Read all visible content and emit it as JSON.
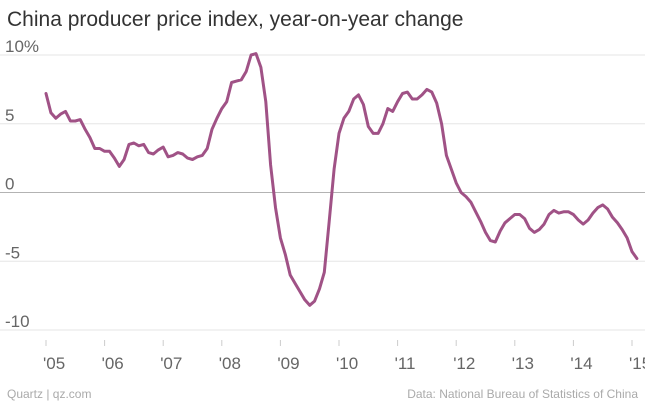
{
  "chart_data": {
    "type": "line",
    "title": "China producer price index, year-on-year change",
    "xlabel": "",
    "ylabel": "",
    "x_ticks": [
      "'05",
      "'06",
      "'07",
      "'08",
      "'09",
      "'10",
      "'11",
      "'12",
      "'13",
      "'14",
      "'15"
    ],
    "y_ticks": [
      "10%",
      "5",
      "0",
      "-5",
      "-10"
    ],
    "ylim": [
      -10,
      10
    ],
    "xlim": [
      "2005-01",
      "2015-01"
    ],
    "grid": true,
    "color": "#a05286",
    "series": [
      {
        "values": [
          7.2,
          5.8,
          5.4,
          5.7,
          5.9,
          5.2,
          5.2,
          5.3,
          4.6,
          4.0,
          3.2,
          3.2,
          3.0,
          3.0,
          2.5,
          1.9,
          2.4,
          3.5,
          3.6,
          3.4,
          3.5,
          2.9,
          2.8,
          3.1,
          3.3,
          2.6,
          2.7,
          2.9,
          2.8,
          2.5,
          2.4,
          2.6,
          2.7,
          3.2,
          4.6,
          5.4,
          6.1,
          6.6,
          8.0,
          8.1,
          8.2,
          8.8,
          10.0,
          10.1,
          9.1,
          6.6,
          2.0,
          -1.1,
          -3.3,
          -4.5,
          -6.0,
          -6.6,
          -7.2,
          -7.8,
          -8.2,
          -7.9,
          -7.0,
          -5.8,
          -2.1,
          1.7,
          4.3,
          5.4,
          5.9,
          6.8,
          7.1,
          6.4,
          4.8,
          4.3,
          4.3,
          5.0,
          6.1,
          5.9,
          6.6,
          7.2,
          7.3,
          6.8,
          6.8,
          7.1,
          7.5,
          7.3,
          6.5,
          5.0,
          2.7,
          1.7,
          0.7,
          0.0,
          -0.3,
          -0.7,
          -1.4,
          -2.1,
          -2.9,
          -3.5,
          -3.6,
          -2.8,
          -2.2,
          -1.9,
          -1.6,
          -1.6,
          -1.9,
          -2.6,
          -2.9,
          -2.7,
          -2.3,
          -1.6,
          -1.3,
          -1.5,
          -1.4,
          -1.4,
          -1.6,
          -2.0,
          -2.3,
          -2.0,
          -1.5,
          -1.1,
          -0.9,
          -1.2,
          -1.8,
          -2.2,
          -2.7,
          -3.3,
          -4.3,
          -4.8
        ]
      }
    ]
  },
  "footer": {
    "left": "Quartz | qz.com",
    "right": "Data: National Bureau of Statistics of China"
  }
}
